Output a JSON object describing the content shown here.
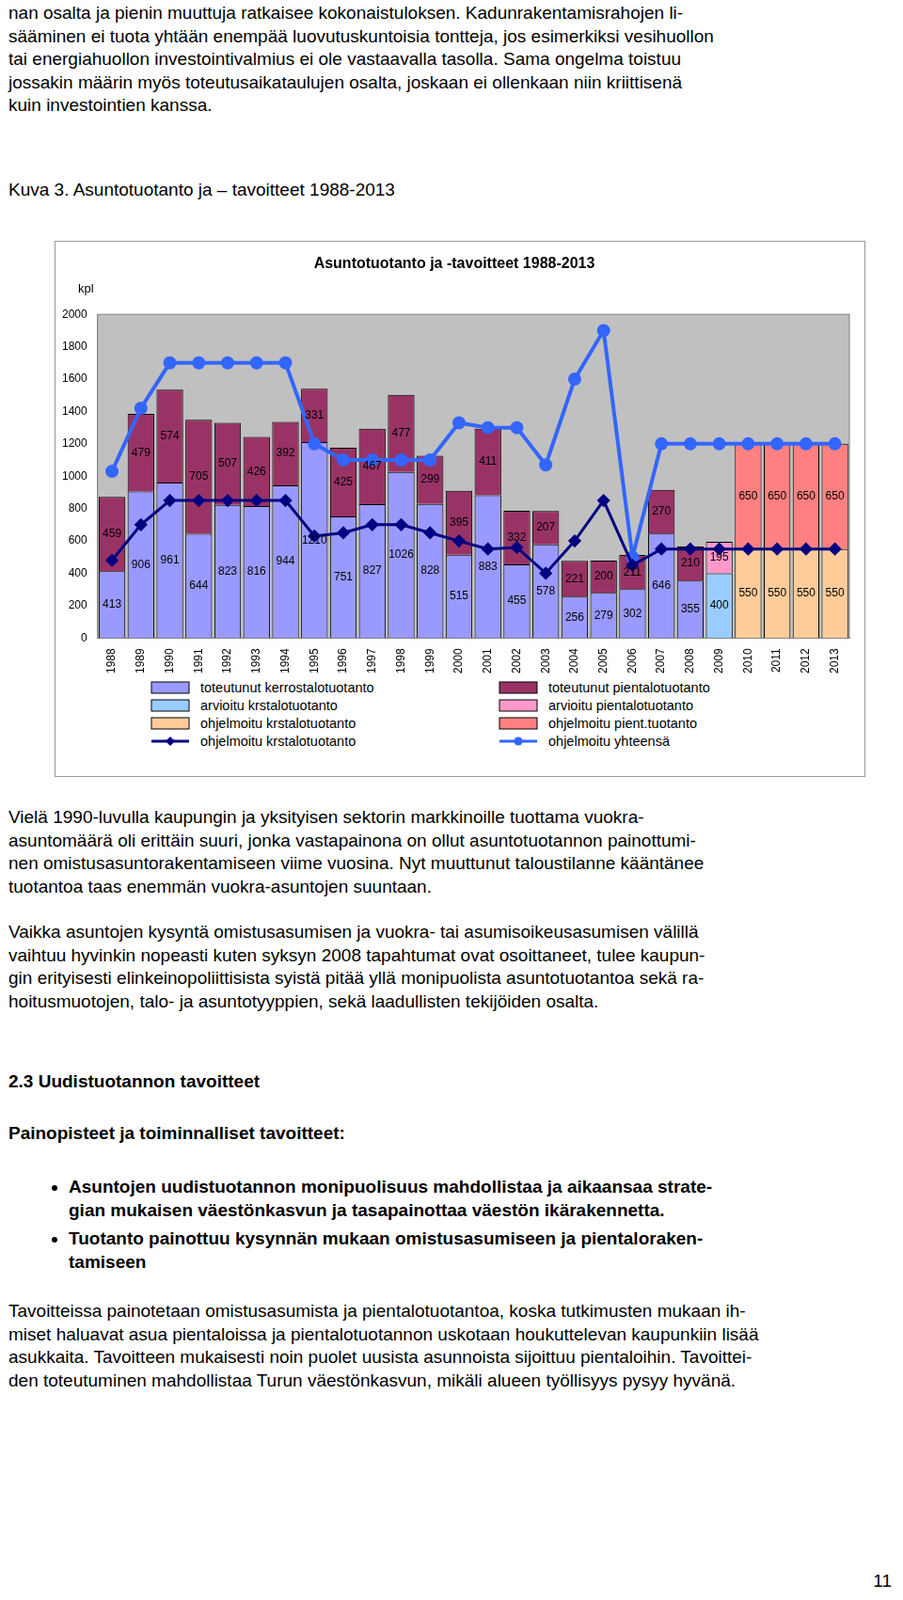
{
  "paragraphs_top": [
    [
      "nan osalta ja pienin muuttuja ratkaisee kokonaistuloksen. Kadunrakentamisrahojen li-",
      "sääminen ei tuota yhtään enempää luovutuskuntoisia tontteja, jos esimerkiksi vesihuollon",
      "tai energiahuollon investointivalmius ei ole vastaavalla tasolla. Sama ongelma toistuu",
      "jossakin määrin myös toteutusaikataulujen osalta, joskaan ei ollenkaan niin kriittisenä",
      "kuin investointien kanssa."
    ]
  ],
  "figure_caption": "Kuva 3. Asuntotuotanto ja – tavoitteet 1988-2013",
  "chart_data": {
    "type": "bar",
    "title": "Asuntotuotanto ja -tavoitteet 1988-2013",
    "y_label": "kpl",
    "categories": [
      "1988",
      "1989",
      "1990",
      "1991",
      "1992",
      "1993",
      "1994",
      "1995",
      "1996",
      "1997",
      "1998",
      "1999",
      "2000",
      "2001",
      "2002",
      "2003",
      "2004",
      "2005",
      "2006",
      "2007",
      "2008",
      "2009",
      "2010",
      "2011",
      "2012",
      "2013"
    ],
    "stacked": true,
    "grid": false,
    "legend": "bottom",
    "ylim": [
      0,
      2000
    ],
    "yticks": [
      0,
      200,
      400,
      600,
      800,
      1000,
      1200,
      1400,
      1600,
      1800,
      2000
    ],
    "series": [
      {
        "name": "toteutunut kerrostalotuotanto",
        "type": "bar",
        "color": "#9999ff",
        "data_labels": true,
        "values": [
          413,
          906,
          961,
          644,
          823,
          816,
          944,
          1210,
          751,
          827,
          1026,
          828,
          515,
          883,
          455,
          578,
          256,
          279,
          302,
          646,
          355,
          null,
          null,
          null,
          null,
          null
        ]
      },
      {
        "name": "toteutunut pientalotuotanto",
        "type": "bar",
        "color": "#993366",
        "data_labels": true,
        "values": [
          459,
          479,
          574,
          705,
          507,
          426,
          392,
          331,
          425,
          467,
          477,
          299,
          395,
          411,
          332,
          207,
          221,
          200,
          211,
          270,
          210,
          null,
          null,
          null,
          null,
          null
        ]
      },
      {
        "name": "arvioitu krstalotuotanto",
        "type": "bar",
        "color": "#99ccff",
        "data_labels": true,
        "values": [
          null,
          null,
          null,
          null,
          null,
          null,
          null,
          null,
          null,
          null,
          null,
          null,
          null,
          null,
          null,
          null,
          null,
          null,
          null,
          null,
          null,
          400,
          null,
          null,
          null,
          null
        ]
      },
      {
        "name": "arvioitu pientalotuotanto",
        "type": "bar",
        "color": "#ff99cc",
        "data_labels": true,
        "values": [
          null,
          null,
          null,
          null,
          null,
          null,
          null,
          null,
          null,
          null,
          null,
          null,
          null,
          null,
          null,
          null,
          null,
          null,
          null,
          null,
          null,
          195,
          null,
          null,
          null,
          null
        ]
      },
      {
        "name": "ohjelmoitu krstalotuotanto",
        "type": "bar",
        "color": "#ffcc99",
        "data_labels": true,
        "values": [
          null,
          null,
          null,
          null,
          null,
          null,
          null,
          null,
          null,
          null,
          null,
          null,
          null,
          null,
          null,
          null,
          null,
          null,
          null,
          null,
          null,
          null,
          550,
          550,
          550,
          550
        ]
      },
      {
        "name": "ohjelmoitu pient.tuotanto",
        "type": "bar",
        "color": "#ff8080",
        "data_labels": true,
        "values": [
          null,
          null,
          null,
          null,
          null,
          null,
          null,
          null,
          null,
          null,
          null,
          null,
          null,
          null,
          null,
          null,
          null,
          null,
          null,
          null,
          null,
          null,
          650,
          650,
          650,
          650
        ]
      },
      {
        "name": "ohjelmoitu krstalotuotanto",
        "type": "line",
        "color": "#000080",
        "marker": "diamond",
        "data_labels": false,
        "values": [
          480,
          700,
          850,
          850,
          850,
          850,
          850,
          630,
          650,
          700,
          700,
          650,
          600,
          550,
          560,
          400,
          600,
          850,
          450,
          550,
          550,
          550,
          550,
          550,
          550,
          550
        ]
      },
      {
        "name": "ohjelmoitu yhteensä",
        "type": "line",
        "color": "#3366ff",
        "marker": "circle",
        "data_labels": false,
        "values": [
          1030,
          1420,
          1700,
          1700,
          1700,
          1700,
          1700,
          1200,
          1100,
          1100,
          1100,
          1100,
          1330,
          1300,
          1300,
          1070,
          1600,
          1900,
          500,
          1200,
          1200,
          1200,
          1200,
          1200,
          1200,
          1200
        ]
      }
    ]
  },
  "paragraphs_bottom": [
    [
      "Vielä 1990-luvulla kaupungin ja yksityisen sektorin markkinoille tuottama vuokra-",
      "asuntomäärä oli erittäin suuri, jonka vastapainona on ollut asuntotuotannon painottumi-",
      "nen omistusasuntorakentamiseen viime vuosina. Nyt muuttunut taloustilanne kääntänee",
      "tuotantoa taas enemmän vuokra-asuntojen suuntaan."
    ],
    [
      "Vaikka asuntojen kysyntä omistusasumisen ja vuokra- tai asumisoikeusasumisen välillä",
      "vaihtuu hyvinkin nopeasti kuten syksyn 2008 tapahtumat ovat osoittaneet, tulee kaupun-",
      "gin erityisesti elinkeinopoliittisista syistä pitää yllä monipuolista asuntotuotantoa sekä ra-",
      "hoitusmuotojen, talo- ja asuntotyyppien, sekä laadullisten tekijöiden osalta."
    ]
  ],
  "section_heading": "2.3 Uudistuotannon tavoitteet",
  "subheading": "Painopisteet ja toiminnalliset tavoitteet:",
  "bullets": [
    [
      "Asuntojen uudistuotannon monipuolisuus mahdollistaa ja aikaansaa strate-",
      "gian mukaisen väestönkasvun ja tasapainottaa väestön ikärakennetta."
    ],
    [
      "Tuotanto painottuu kysynnän mukaan omistusasumiseen ja pientaloraken-",
      "tamiseen"
    ]
  ],
  "paragraphs_end": [
    [
      "Tavoitteissa painotetaan omistusasumista ja pientalotuotantoa, koska tutkimusten mukaan ih-",
      "miset haluavat asua pientaloissa ja pientalotuotannon uskotaan houkuttelevan kaupunkiin lisää",
      "asukkaita. Tavoitteen mukaisesti noin puolet uusista asunnoista sijoittuu pientaloihin. Tavoittei-",
      "den toteutuminen mahdollistaa Turun väestönkasvun, mikäli alueen työllisyys pysyy hyvänä."
    ]
  ],
  "page_number": 11
}
